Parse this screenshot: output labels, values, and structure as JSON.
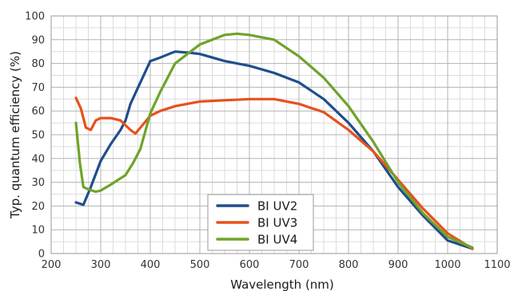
{
  "chart_data": {
    "type": "line",
    "xlabel": "Wavelength (nm)",
    "ylabel": "Typ. quantum efficiency (%)",
    "xlim": [
      200,
      1100
    ],
    "ylim": [
      0,
      100
    ],
    "x_ticks": [
      200,
      300,
      400,
      500,
      600,
      700,
      800,
      900,
      1000,
      1100
    ],
    "y_ticks": [
      0,
      10,
      20,
      30,
      40,
      50,
      60,
      70,
      80,
      90,
      100
    ],
    "x_tick_labels": [
      "200",
      "300",
      "400",
      "500",
      "600",
      "700",
      "800",
      "900",
      "1000",
      "1100"
    ],
    "y_tick_labels": [
      "0",
      "10",
      "20",
      "30",
      "40",
      "50",
      "60",
      "70",
      "80",
      "90",
      "100"
    ],
    "grid": true,
    "legend_position": "bottom-center",
    "series": [
      {
        "name": "BI UV2",
        "color": "#1f4e8c",
        "points": [
          [
            250,
            21.5
          ],
          [
            265,
            20.5
          ],
          [
            280,
            28
          ],
          [
            300,
            39
          ],
          [
            320,
            46
          ],
          [
            340,
            52
          ],
          [
            350,
            56
          ],
          [
            360,
            63
          ],
          [
            380,
            72
          ],
          [
            400,
            81
          ],
          [
            420,
            82.5
          ],
          [
            450,
            85
          ],
          [
            480,
            84.5
          ],
          [
            500,
            84
          ],
          [
            550,
            81
          ],
          [
            600,
            79
          ],
          [
            650,
            76
          ],
          [
            700,
            72
          ],
          [
            750,
            65
          ],
          [
            800,
            55
          ],
          [
            850,
            43
          ],
          [
            900,
            28
          ],
          [
            950,
            16
          ],
          [
            1000,
            5.5
          ],
          [
            1050,
            2
          ]
        ]
      },
      {
        "name": "BI UV3",
        "color": "#e8501c",
        "points": [
          [
            250,
            65.5
          ],
          [
            260,
            61
          ],
          [
            265,
            57
          ],
          [
            270,
            53
          ],
          [
            280,
            52
          ],
          [
            290,
            56
          ],
          [
            300,
            57
          ],
          [
            320,
            57
          ],
          [
            340,
            56
          ],
          [
            360,
            52
          ],
          [
            370,
            50.5
          ],
          [
            380,
            53
          ],
          [
            400,
            58
          ],
          [
            420,
            60
          ],
          [
            450,
            62
          ],
          [
            500,
            64
          ],
          [
            550,
            64.5
          ],
          [
            600,
            65
          ],
          [
            650,
            65
          ],
          [
            700,
            63
          ],
          [
            750,
            59.5
          ],
          [
            800,
            52
          ],
          [
            850,
            43
          ],
          [
            900,
            31
          ],
          [
            950,
            19
          ],
          [
            1000,
            8.5
          ],
          [
            1050,
            2
          ]
        ]
      },
      {
        "name": "BI UV4",
        "color": "#6fa32a",
        "points": [
          [
            250,
            55
          ],
          [
            258,
            38
          ],
          [
            265,
            28
          ],
          [
            275,
            27
          ],
          [
            290,
            26
          ],
          [
            300,
            26.5
          ],
          [
            320,
            29
          ],
          [
            350,
            33
          ],
          [
            365,
            38
          ],
          [
            380,
            44
          ],
          [
            400,
            59
          ],
          [
            420,
            68
          ],
          [
            450,
            80
          ],
          [
            500,
            88
          ],
          [
            550,
            92
          ],
          [
            575,
            92.5
          ],
          [
            600,
            92
          ],
          [
            650,
            90
          ],
          [
            700,
            83
          ],
          [
            750,
            74
          ],
          [
            800,
            62
          ],
          [
            850,
            47
          ],
          [
            900,
            30
          ],
          [
            950,
            17
          ],
          [
            1000,
            7
          ],
          [
            1050,
            2.5
          ]
        ]
      }
    ]
  }
}
